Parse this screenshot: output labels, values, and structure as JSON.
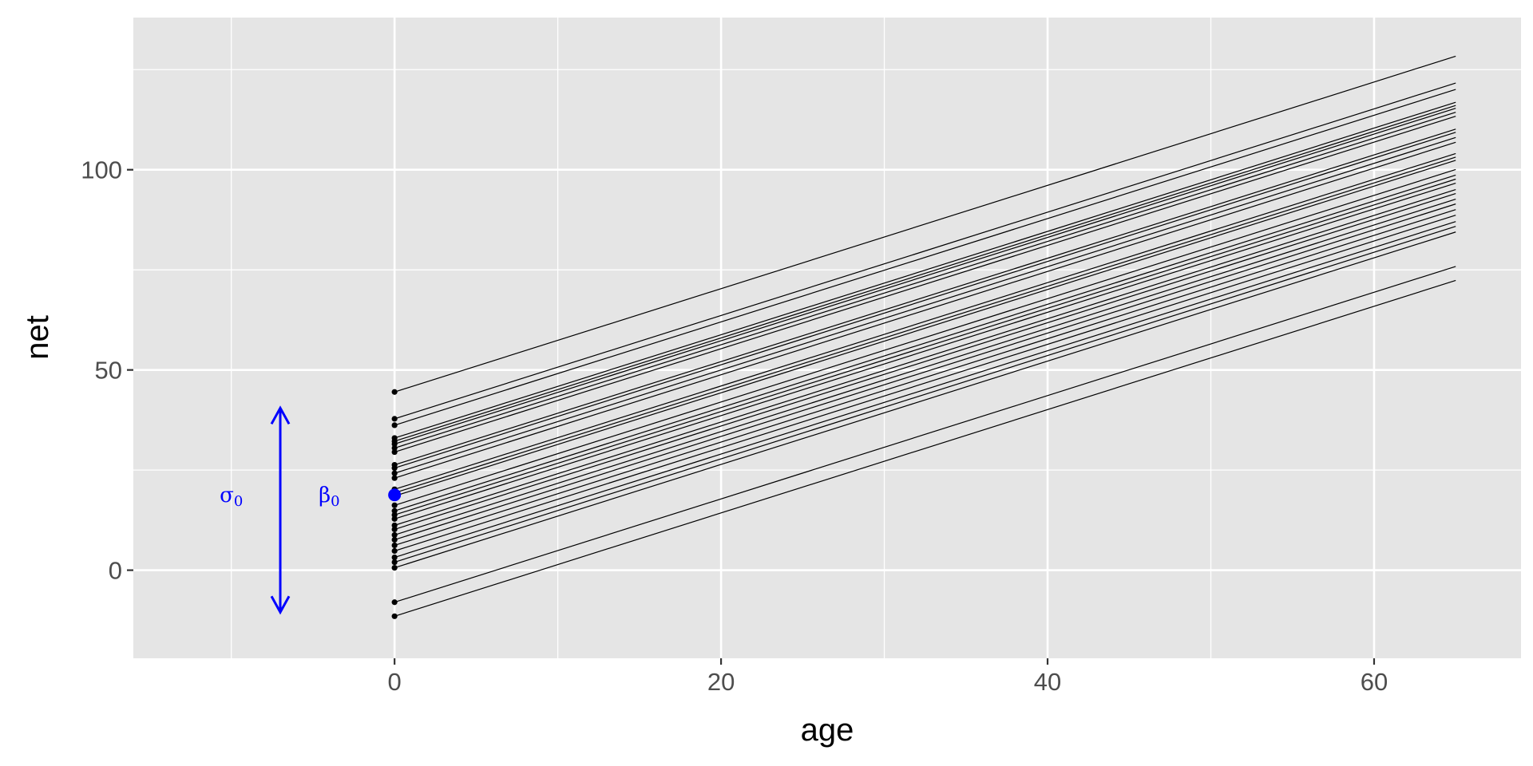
{
  "chart_data": {
    "type": "line",
    "title": "",
    "xlabel": "age",
    "ylabel": "net",
    "xlim": [
      -16,
      69
    ],
    "ylim": [
      -22,
      138
    ],
    "x_ticks": [
      0,
      20,
      40,
      60
    ],
    "y_ticks": [
      0,
      50,
      100
    ],
    "x_tick_labels": [
      "0",
      "20",
      "40",
      "60"
    ],
    "y_tick_labels": [
      "0",
      "50",
      "100"
    ],
    "grid": true,
    "background_color": "#e5e5e5",
    "grid_color": "#ffffff",
    "line_color": "#000000",
    "slope": 1.29,
    "x_start": 0,
    "x_end": 65,
    "intercepts": [
      44.5,
      37.8,
      36.2,
      33.0,
      32.2,
      31.5,
      30.5,
      29.5,
      26.3,
      25.5,
      24.2,
      23.0,
      20.2,
      19.3,
      18.5,
      16.2,
      14.8,
      13.8,
      12.8,
      11.2,
      10.2,
      8.8,
      7.6,
      6.2,
      4.8,
      3.2,
      2.0,
      0.6,
      -8.0,
      -11.5
    ],
    "mean_intercept": {
      "x": 0,
      "y": 18.8,
      "color": "#0000ff"
    },
    "sd_arrow": {
      "x": -7,
      "y_low": -10.5,
      "y_high": 40.5,
      "color": "#0000ff"
    },
    "annotations": [
      {
        "text": "σ",
        "sub": "0",
        "x": -10,
        "y": 18.8,
        "color": "#0000ff"
      },
      {
        "text": "β",
        "sub": "0",
        "x": -4,
        "y": 18.8,
        "color": "#0000ff"
      }
    ]
  }
}
